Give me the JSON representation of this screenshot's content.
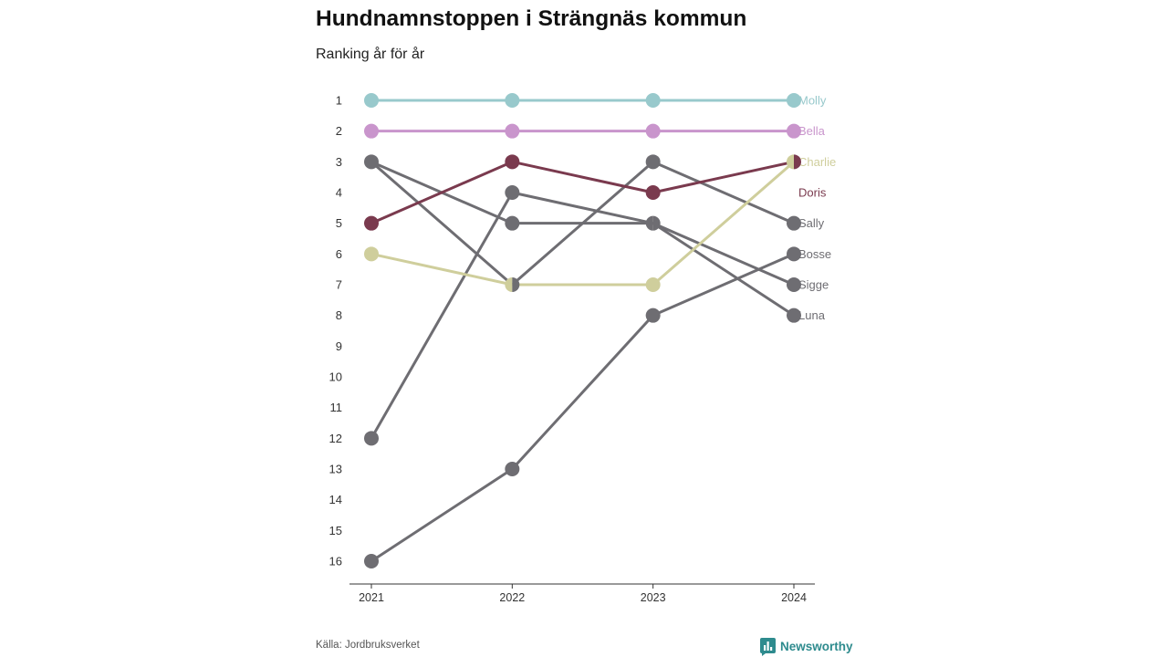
{
  "chart_data": {
    "type": "line",
    "title": "Hundnamnstoppen i Strängnäs kommun",
    "subtitle": "Ranking år för år",
    "x": [
      "2021",
      "2022",
      "2023",
      "2024"
    ],
    "y_ticks": [
      1,
      2,
      3,
      4,
      5,
      6,
      7,
      8,
      9,
      10,
      11,
      12,
      13,
      14,
      15,
      16
    ],
    "ylim": [
      1,
      16
    ],
    "y_reversed": true,
    "grid": false,
    "legend": "right",
    "series": [
      {
        "name": "Molly",
        "values": [
          1,
          1,
          1,
          1
        ],
        "color": "#98C9CC"
      },
      {
        "name": "Bella",
        "values": [
          2,
          2,
          2,
          2
        ],
        "color": "#C995CC"
      },
      {
        "name": "Charlie",
        "values": [
          6,
          7,
          7,
          3
        ],
        "color": "#CFCE9C"
      },
      {
        "name": "Doris",
        "values": [
          5,
          3,
          4,
          3
        ],
        "color": "#7A3A4E"
      },
      {
        "name": "Sally",
        "values": [
          3,
          7,
          3,
          5
        ],
        "color": "#6E6D72"
      },
      {
        "name": "Bosse",
        "values": [
          16,
          13,
          8,
          6
        ],
        "color": "#6E6D72"
      },
      {
        "name": "Sigge",
        "values": [
          3,
          5,
          5,
          7
        ],
        "color": "#6E6D72"
      },
      {
        "name": "Luna",
        "values": [
          12,
          4,
          5,
          8
        ],
        "color": "#6E6D72"
      }
    ]
  },
  "source": "Källa: Jordbruksverket",
  "brand": {
    "name": "Newsworthy",
    "icon": "newsworthy-logo-icon",
    "color": "#2E8B8E"
  },
  "colors": {
    "axis": "#333333",
    "tick_text": "#333333"
  }
}
